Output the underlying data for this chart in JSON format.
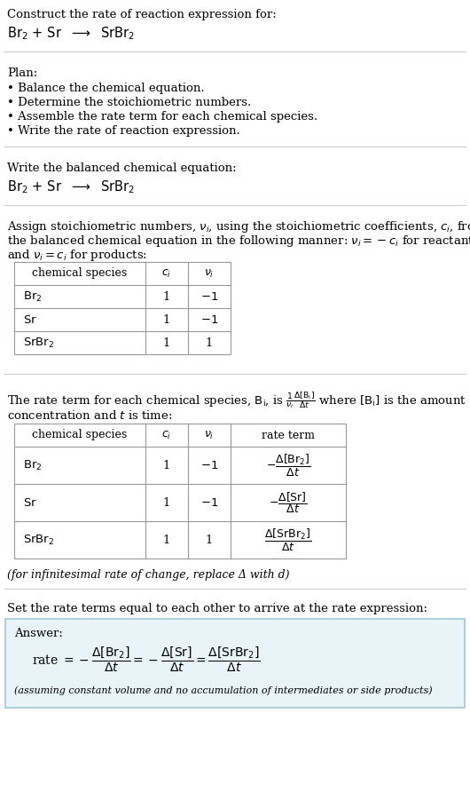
{
  "title_line1": "Construct the rate of reaction expression for:",
  "plan_header": "Plan:",
  "plan_bullets": [
    "• Balance the chemical equation.",
    "• Determine the stoichiometric numbers.",
    "• Assemble the rate term for each chemical species.",
    "• Write the rate of reaction expression."
  ],
  "balanced_header": "Write the balanced chemical equation:",
  "set_rate_text": "Set the rate terms equal to each other to arrive at the rate expression:",
  "answer_label": "Answer:",
  "answer_box_color": "#e8f4f8",
  "answer_border_color": "#a0c8d8",
  "assuming_note": "(assuming constant volume and no accumulation of intermediates or side products)",
  "bg_color": "#ffffff",
  "text_color": "#000000",
  "table_border_color": "#999999",
  "font_size": 9.5,
  "line_color": "#cccccc"
}
